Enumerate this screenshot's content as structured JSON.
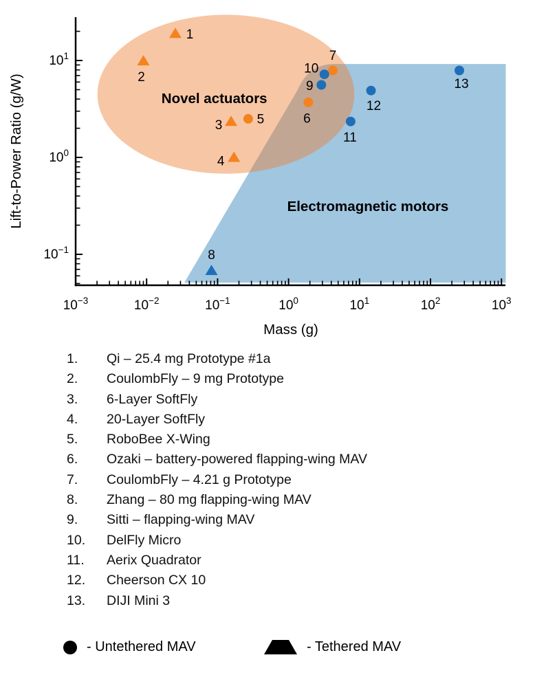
{
  "chart_data": {
    "type": "scatter",
    "title": "",
    "xlabel": "Mass (g)",
    "ylabel": "Lift-to-Power Ratio (g/W)",
    "x_scale": "log",
    "y_scale": "log",
    "xlim_exponents": [
      -3,
      3.056
    ],
    "ylim_exponents": [
      -1.319,
      1.447
    ],
    "x_tick_exponents": [
      -3,
      -2,
      -1,
      0,
      1,
      2,
      3
    ],
    "y_tick_exponents": [
      1,
      0,
      -1
    ],
    "grid": false,
    "axis_color": "#000000",
    "regions": [
      {
        "id": "electromagnetic-motors",
        "label": "Electromagnetic motors",
        "shape": "polygon",
        "fill": "#1F77B4",
        "fill_opacity": 0.42,
        "vertices": [
          [
            0.034,
            0.051
          ],
          [
            1.34,
            4.96
          ],
          [
            4.4,
            9.2
          ],
          [
            1150,
            9.2
          ],
          [
            1150,
            0.051
          ]
        ],
        "rounded_corner_control": [
          1.91,
          9.2
        ],
        "label_anchor": [
          13.1,
          0.314
        ]
      },
      {
        "id": "novel-actuators",
        "label": "Novel actuators",
        "shape": "ellipse",
        "fill": "#ED7D31",
        "fill_opacity": 0.44,
        "center": [
          0.131,
          4.49
        ],
        "rx_decades": 1.81,
        "ry_decades": 0.82,
        "label_anchor": [
          0.09,
          4.07
        ]
      }
    ],
    "marker_colors": {
      "orange": "#F4831E",
      "blue": "#1E6FB8"
    },
    "points": [
      {
        "id": 1,
        "mass_g": 0.0254,
        "lift_to_power_g_per_w": 19,
        "marker": "triangle",
        "color": "orange",
        "label_offset": [
          21,
          1
        ]
      },
      {
        "id": 2,
        "mass_g": 0.009,
        "lift_to_power_g_per_w": 9.9,
        "marker": "triangle",
        "color": "orange",
        "label_offset": [
          -3,
          23
        ]
      },
      {
        "id": 3,
        "mass_g": 0.155,
        "lift_to_power_g_per_w": 2.35,
        "marker": "triangle",
        "color": "orange",
        "label_offset": [
          -18,
          5
        ]
      },
      {
        "id": 4,
        "mass_g": 0.17,
        "lift_to_power_g_per_w": 1.0,
        "marker": "triangle",
        "color": "orange",
        "label_offset": [
          -19,
          5
        ]
      },
      {
        "id": 5,
        "mass_g": 0.27,
        "lift_to_power_g_per_w": 2.5,
        "marker": "circle",
        "color": "orange",
        "label_offset": [
          18,
          0
        ]
      },
      {
        "id": 6,
        "mass_g": 1.9,
        "lift_to_power_g_per_w": 3.7,
        "marker": "circle",
        "color": "orange",
        "label_offset": [
          -2,
          23
        ]
      },
      {
        "id": 7,
        "mass_g": 4.21,
        "lift_to_power_g_per_w": 7.9,
        "marker": "circle",
        "color": "orange",
        "label_offset": [
          0,
          -22
        ]
      },
      {
        "id": 8,
        "mass_g": 0.082,
        "lift_to_power_g_per_w": 0.068,
        "marker": "triangle",
        "color": "blue",
        "label_offset": [
          0,
          -23
        ]
      },
      {
        "id": 9,
        "mass_g": 2.9,
        "lift_to_power_g_per_w": 5.6,
        "marker": "circle",
        "color": "blue",
        "label_offset": [
          -17,
          1
        ]
      },
      {
        "id": 10,
        "mass_g": 3.2,
        "lift_to_power_g_per_w": 7.2,
        "marker": "circle",
        "color": "blue",
        "label_offset": [
          -19,
          -9
        ]
      },
      {
        "id": 11,
        "mass_g": 7.5,
        "lift_to_power_g_per_w": 2.35,
        "marker": "circle",
        "color": "blue",
        "label_offset": [
          -1,
          23
        ]
      },
      {
        "id": 12,
        "mass_g": 14.5,
        "lift_to_power_g_per_w": 4.9,
        "marker": "circle",
        "color": "blue",
        "label_offset": [
          4,
          22
        ]
      },
      {
        "id": 13,
        "mass_g": 255,
        "lift_to_power_g_per_w": 7.9,
        "marker": "circle",
        "color": "blue",
        "label_offset": [
          3,
          19
        ]
      }
    ]
  },
  "device_list": {
    "items": [
      {
        "num": "1.",
        "label": "Qi – 25.4 mg Prototype #1a"
      },
      {
        "num": "2.",
        "label": "CoulombFly – 9 mg Prototype"
      },
      {
        "num": "3.",
        "label": "6-Layer SoftFly"
      },
      {
        "num": "4.",
        "label": "20-Layer SoftFly"
      },
      {
        "num": "5.",
        "label": "RoboBee X-Wing"
      },
      {
        "num": "6.",
        "label": "Ozaki – battery-powered flapping-wing MAV"
      },
      {
        "num": "7.",
        "label": "CoulombFly – 4.21 g Prototype"
      },
      {
        "num": "8.",
        "label": "Zhang – 80 mg flapping-wing MAV"
      },
      {
        "num": "9.",
        "label": "Sitti – flapping-wing MAV"
      },
      {
        "num": "10.",
        "label": "DelFly Micro"
      },
      {
        "num": "11.",
        "label": "Aerix Quadrator"
      },
      {
        "num": "12.",
        "label": "Cheerson CX 10"
      },
      {
        "num": "13.",
        "label": "DIJI Mini 3"
      }
    ]
  },
  "legend": {
    "untethered": {
      "symbol": "circle",
      "label": "- Untethered MAV"
    },
    "tethered": {
      "symbol": "triangle",
      "label": "- Tethered MAV"
    }
  }
}
